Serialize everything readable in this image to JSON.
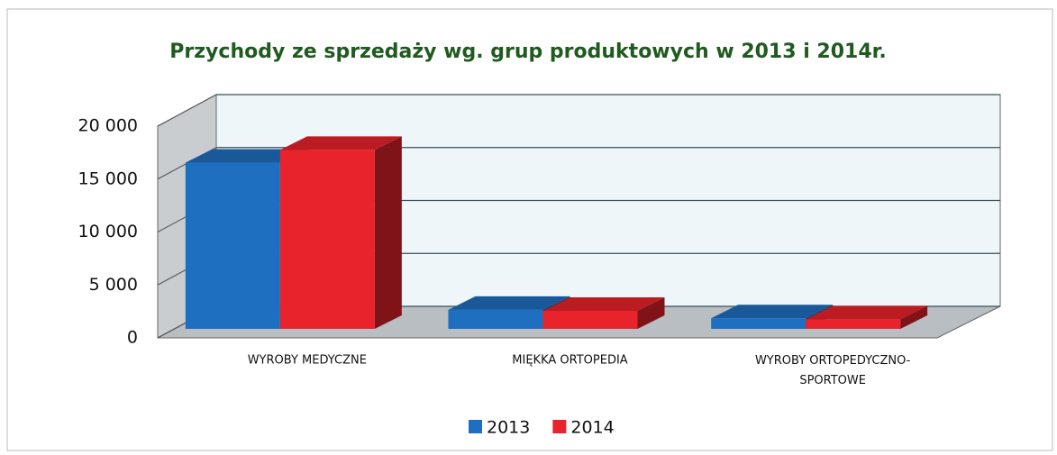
{
  "chart_data": {
    "type": "bar3d",
    "title": "Przychody ze sprzedaży wg. grup produktowych w 2013 i 2014r.",
    "categories": [
      "WYROBY MEDYCZNE",
      "MIĘKKA ORTOPEDIA",
      "WYROBY ORTOPEDYCZNO-SPORTOWE"
    ],
    "series": [
      {
        "name": "2013",
        "color": "#1f6fc0",
        "values": [
          15700,
          1800,
          1000
        ]
      },
      {
        "name": "2014",
        "color": "#e8232b",
        "values": [
          16900,
          1700,
          900
        ]
      }
    ],
    "ylim": [
      0,
      20000
    ],
    "yticks": [
      0,
      {
        "value": 5000,
        "label": "5 000"
      },
      {
        "value": 10000,
        "label": "10 000"
      },
      {
        "value": 15000,
        "label": "15 000"
      },
      {
        "value": 20000,
        "label": "20 000"
      }
    ],
    "grid": true,
    "legend": "bottom"
  }
}
